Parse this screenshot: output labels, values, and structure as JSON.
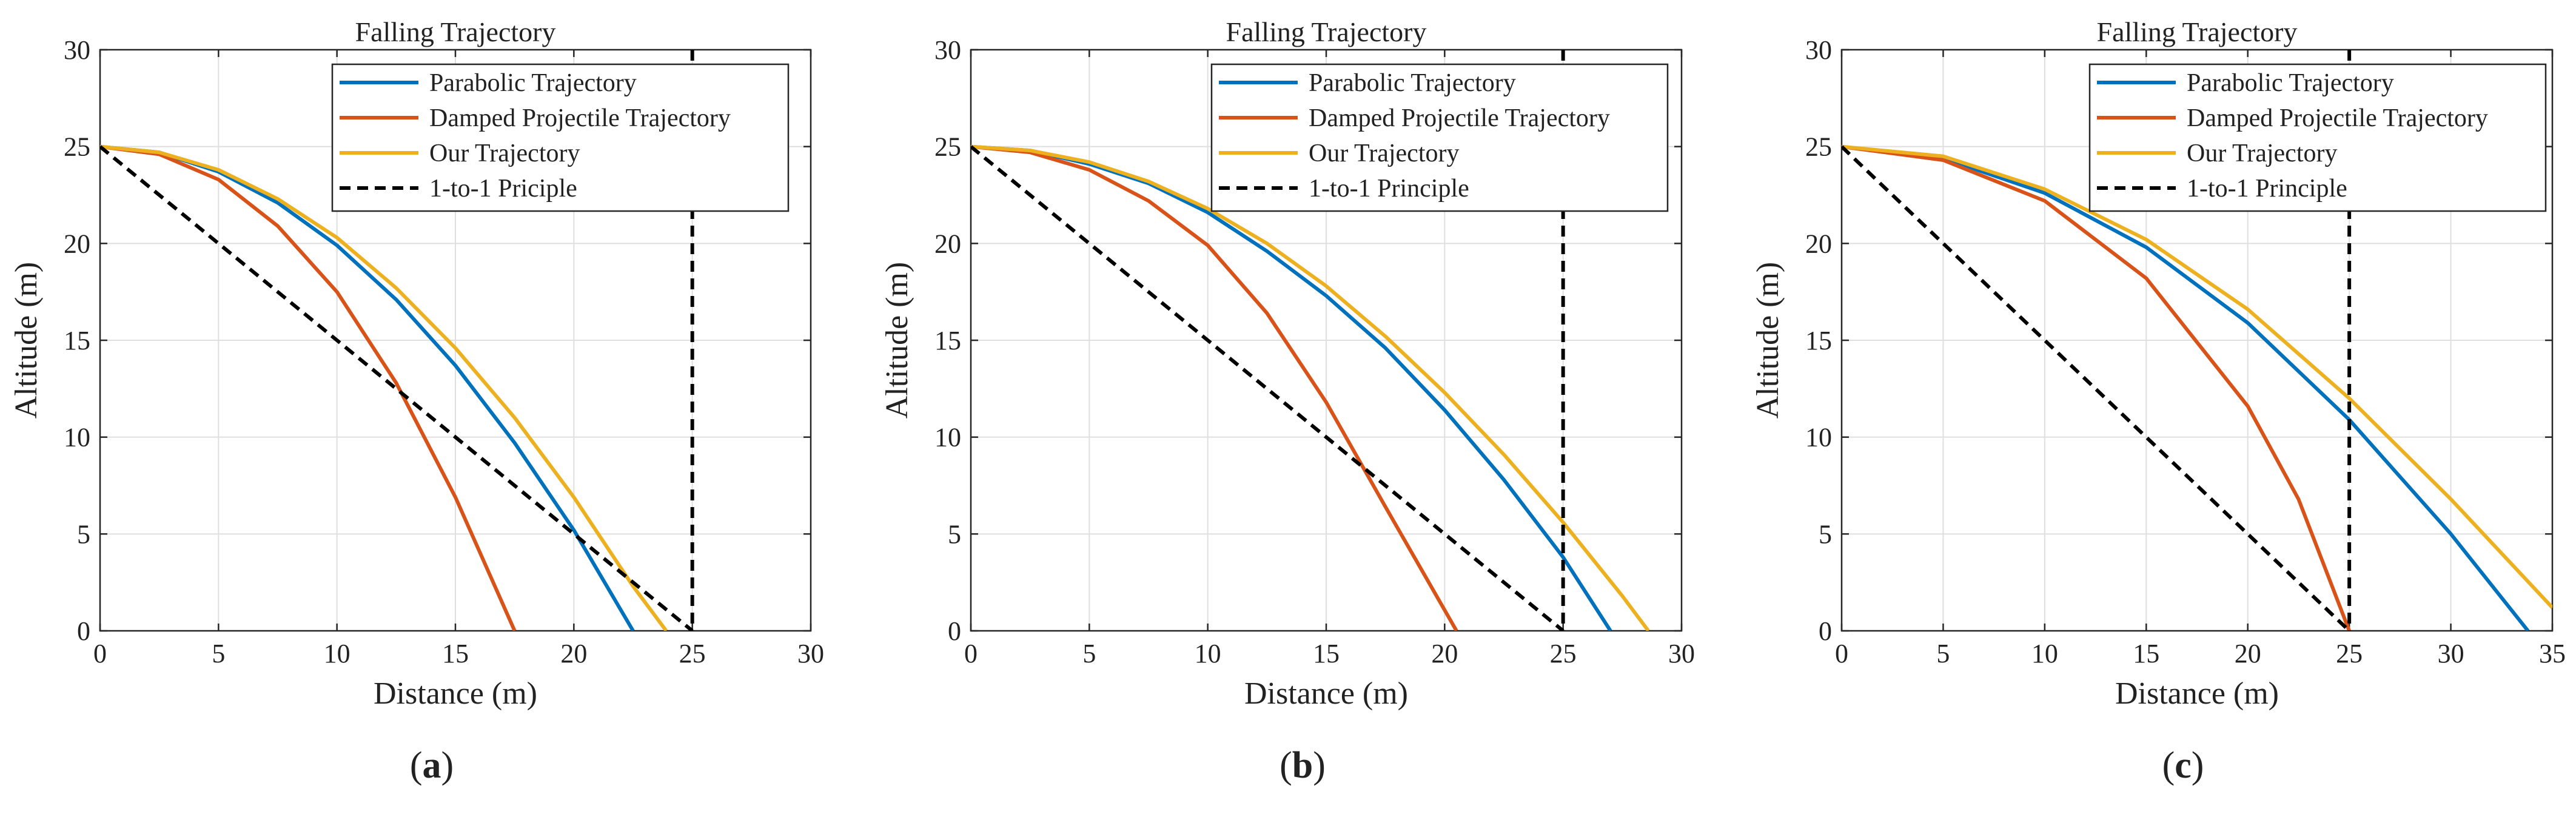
{
  "figure": {
    "panels": [
      "(a)",
      "(b)",
      "(c)"
    ]
  },
  "colors": {
    "parabolic": "#0072bd",
    "damped": "#d95319",
    "ours": "#edb120",
    "principle": "#000000",
    "grid": "#dfdfdf",
    "axes": "#262626"
  },
  "chart_data": [
    {
      "panel_label": "a",
      "type": "line",
      "title": "Falling Trajectory",
      "xlabel": "Distance (m)",
      "ylabel": "Altitude (m)",
      "xlim": [
        0,
        30
      ],
      "ylim": [
        0,
        30
      ],
      "xticks": [
        0,
        5,
        10,
        15,
        20,
        25,
        30
      ],
      "yticks": [
        0,
        5,
        10,
        15,
        20,
        25,
        30
      ],
      "grid": true,
      "legend_position": "top-right",
      "series": [
        {
          "name": "Parabolic Trajectory",
          "color_key": "parabolic",
          "style": "solid",
          "x": [
            0,
            2.5,
            5,
            7.5,
            10,
            12.5,
            15,
            17.5,
            20,
            22.5
          ],
          "y": [
            25,
            24.7,
            23.7,
            22.1,
            19.9,
            17.1,
            13.7,
            9.7,
            5.2,
            0
          ]
        },
        {
          "name": "Damped Projectile Trajectory",
          "color_key": "damped",
          "style": "solid",
          "x": [
            0,
            2.5,
            5,
            7.5,
            10,
            12.5,
            15,
            17.5
          ],
          "y": [
            25,
            24.6,
            23.3,
            20.9,
            17.5,
            12.8,
            6.9,
            0
          ]
        },
        {
          "name": "Our Trajectory",
          "color_key": "ours",
          "style": "solid",
          "x": [
            0,
            2.5,
            5,
            7.5,
            10,
            12.5,
            15,
            17.5,
            20,
            22.5,
            23.9
          ],
          "y": [
            25,
            24.7,
            23.8,
            22.3,
            20.3,
            17.7,
            14.6,
            11.0,
            6.9,
            2.3,
            0
          ]
        },
        {
          "name": "1-to-1 Priciple",
          "color_key": "principle",
          "style": "dashed",
          "x": [
            0,
            25
          ],
          "y": [
            25,
            0
          ]
        }
      ],
      "vertical_line": {
        "x": 25,
        "color_key": "principle",
        "style": "dashed"
      }
    },
    {
      "panel_label": "b",
      "type": "line",
      "title": "Falling Trajectory",
      "xlabel": "Distance (m)",
      "ylabel": "Altitude (m)",
      "xlim": [
        0,
        30
      ],
      "ylim": [
        0,
        30
      ],
      "xticks": [
        0,
        5,
        10,
        15,
        20,
        25,
        30
      ],
      "yticks": [
        0,
        5,
        10,
        15,
        20,
        25,
        30
      ],
      "grid": true,
      "legend_position": "top-right",
      "series": [
        {
          "name": "Parabolic Trajectory",
          "color_key": "parabolic",
          "style": "solid",
          "x": [
            0,
            2.5,
            5,
            7.5,
            10,
            12.5,
            15,
            17.5,
            20,
            22.5,
            25,
            27
          ],
          "y": [
            25,
            24.8,
            24.1,
            23.1,
            21.6,
            19.6,
            17.3,
            14.6,
            11.4,
            7.8,
            3.8,
            0
          ]
        },
        {
          "name": "Damped Projectile Trajectory",
          "color_key": "damped",
          "style": "solid",
          "x": [
            0,
            2.5,
            5,
            7.5,
            10,
            12.5,
            15,
            17.5,
            19,
            20.5
          ],
          "y": [
            25,
            24.7,
            23.8,
            22.2,
            19.9,
            16.4,
            11.8,
            6.4,
            3.2,
            0
          ]
        },
        {
          "name": "Our Trajectory",
          "color_key": "ours",
          "style": "solid",
          "x": [
            0,
            2.5,
            5,
            7.5,
            10,
            12.5,
            15,
            17.5,
            20,
            22.5,
            25,
            27.5,
            28.6
          ],
          "y": [
            25,
            24.8,
            24.2,
            23.2,
            21.8,
            20.0,
            17.8,
            15.2,
            12.3,
            9.1,
            5.6,
            1.8,
            0
          ]
        },
        {
          "name": "1-to-1 Principle",
          "color_key": "principle",
          "style": "dashed",
          "x": [
            0,
            25
          ],
          "y": [
            25,
            0
          ]
        }
      ],
      "vertical_line": {
        "x": 25,
        "color_key": "principle",
        "style": "dashed"
      }
    },
    {
      "panel_label": "c",
      "type": "line",
      "title": "Falling Trajectory",
      "xlabel": "Distance (m)",
      "ylabel": "Altitude (m)",
      "xlim": [
        0,
        35
      ],
      "ylim": [
        0,
        30
      ],
      "xticks": [
        0,
        5,
        10,
        15,
        20,
        25,
        30,
        35
      ],
      "yticks": [
        0,
        5,
        10,
        15,
        20,
        25,
        30
      ],
      "grid": true,
      "legend_position": "top-right",
      "series": [
        {
          "name": "Parabolic Trajectory",
          "color_key": "parabolic",
          "style": "solid",
          "x": [
            0,
            5,
            10,
            15,
            20,
            25,
            30,
            33.8
          ],
          "y": [
            25,
            24.4,
            22.6,
            19.8,
            15.9,
            10.9,
            5.0,
            0
          ]
        },
        {
          "name": "Damped Projectile Trajectory",
          "color_key": "damped",
          "style": "solid",
          "x": [
            0,
            5,
            10,
            15,
            20,
            22.5,
            25
          ],
          "y": [
            25,
            24.3,
            22.2,
            18.2,
            11.6,
            6.8,
            0
          ]
        },
        {
          "name": "Our Trajectory",
          "color_key": "ours",
          "style": "solid",
          "x": [
            0,
            5,
            10,
            15,
            20,
            25,
            30,
            35
          ],
          "y": [
            25,
            24.5,
            22.8,
            20.2,
            16.6,
            12.0,
            6.8,
            1.2
          ]
        },
        {
          "name": "1-to-1 Principle",
          "color_key": "principle",
          "style": "dashed",
          "x": [
            0,
            25
          ],
          "y": [
            25,
            0
          ]
        }
      ],
      "vertical_line": {
        "x": 25,
        "color_key": "principle",
        "style": "dashed"
      }
    }
  ]
}
